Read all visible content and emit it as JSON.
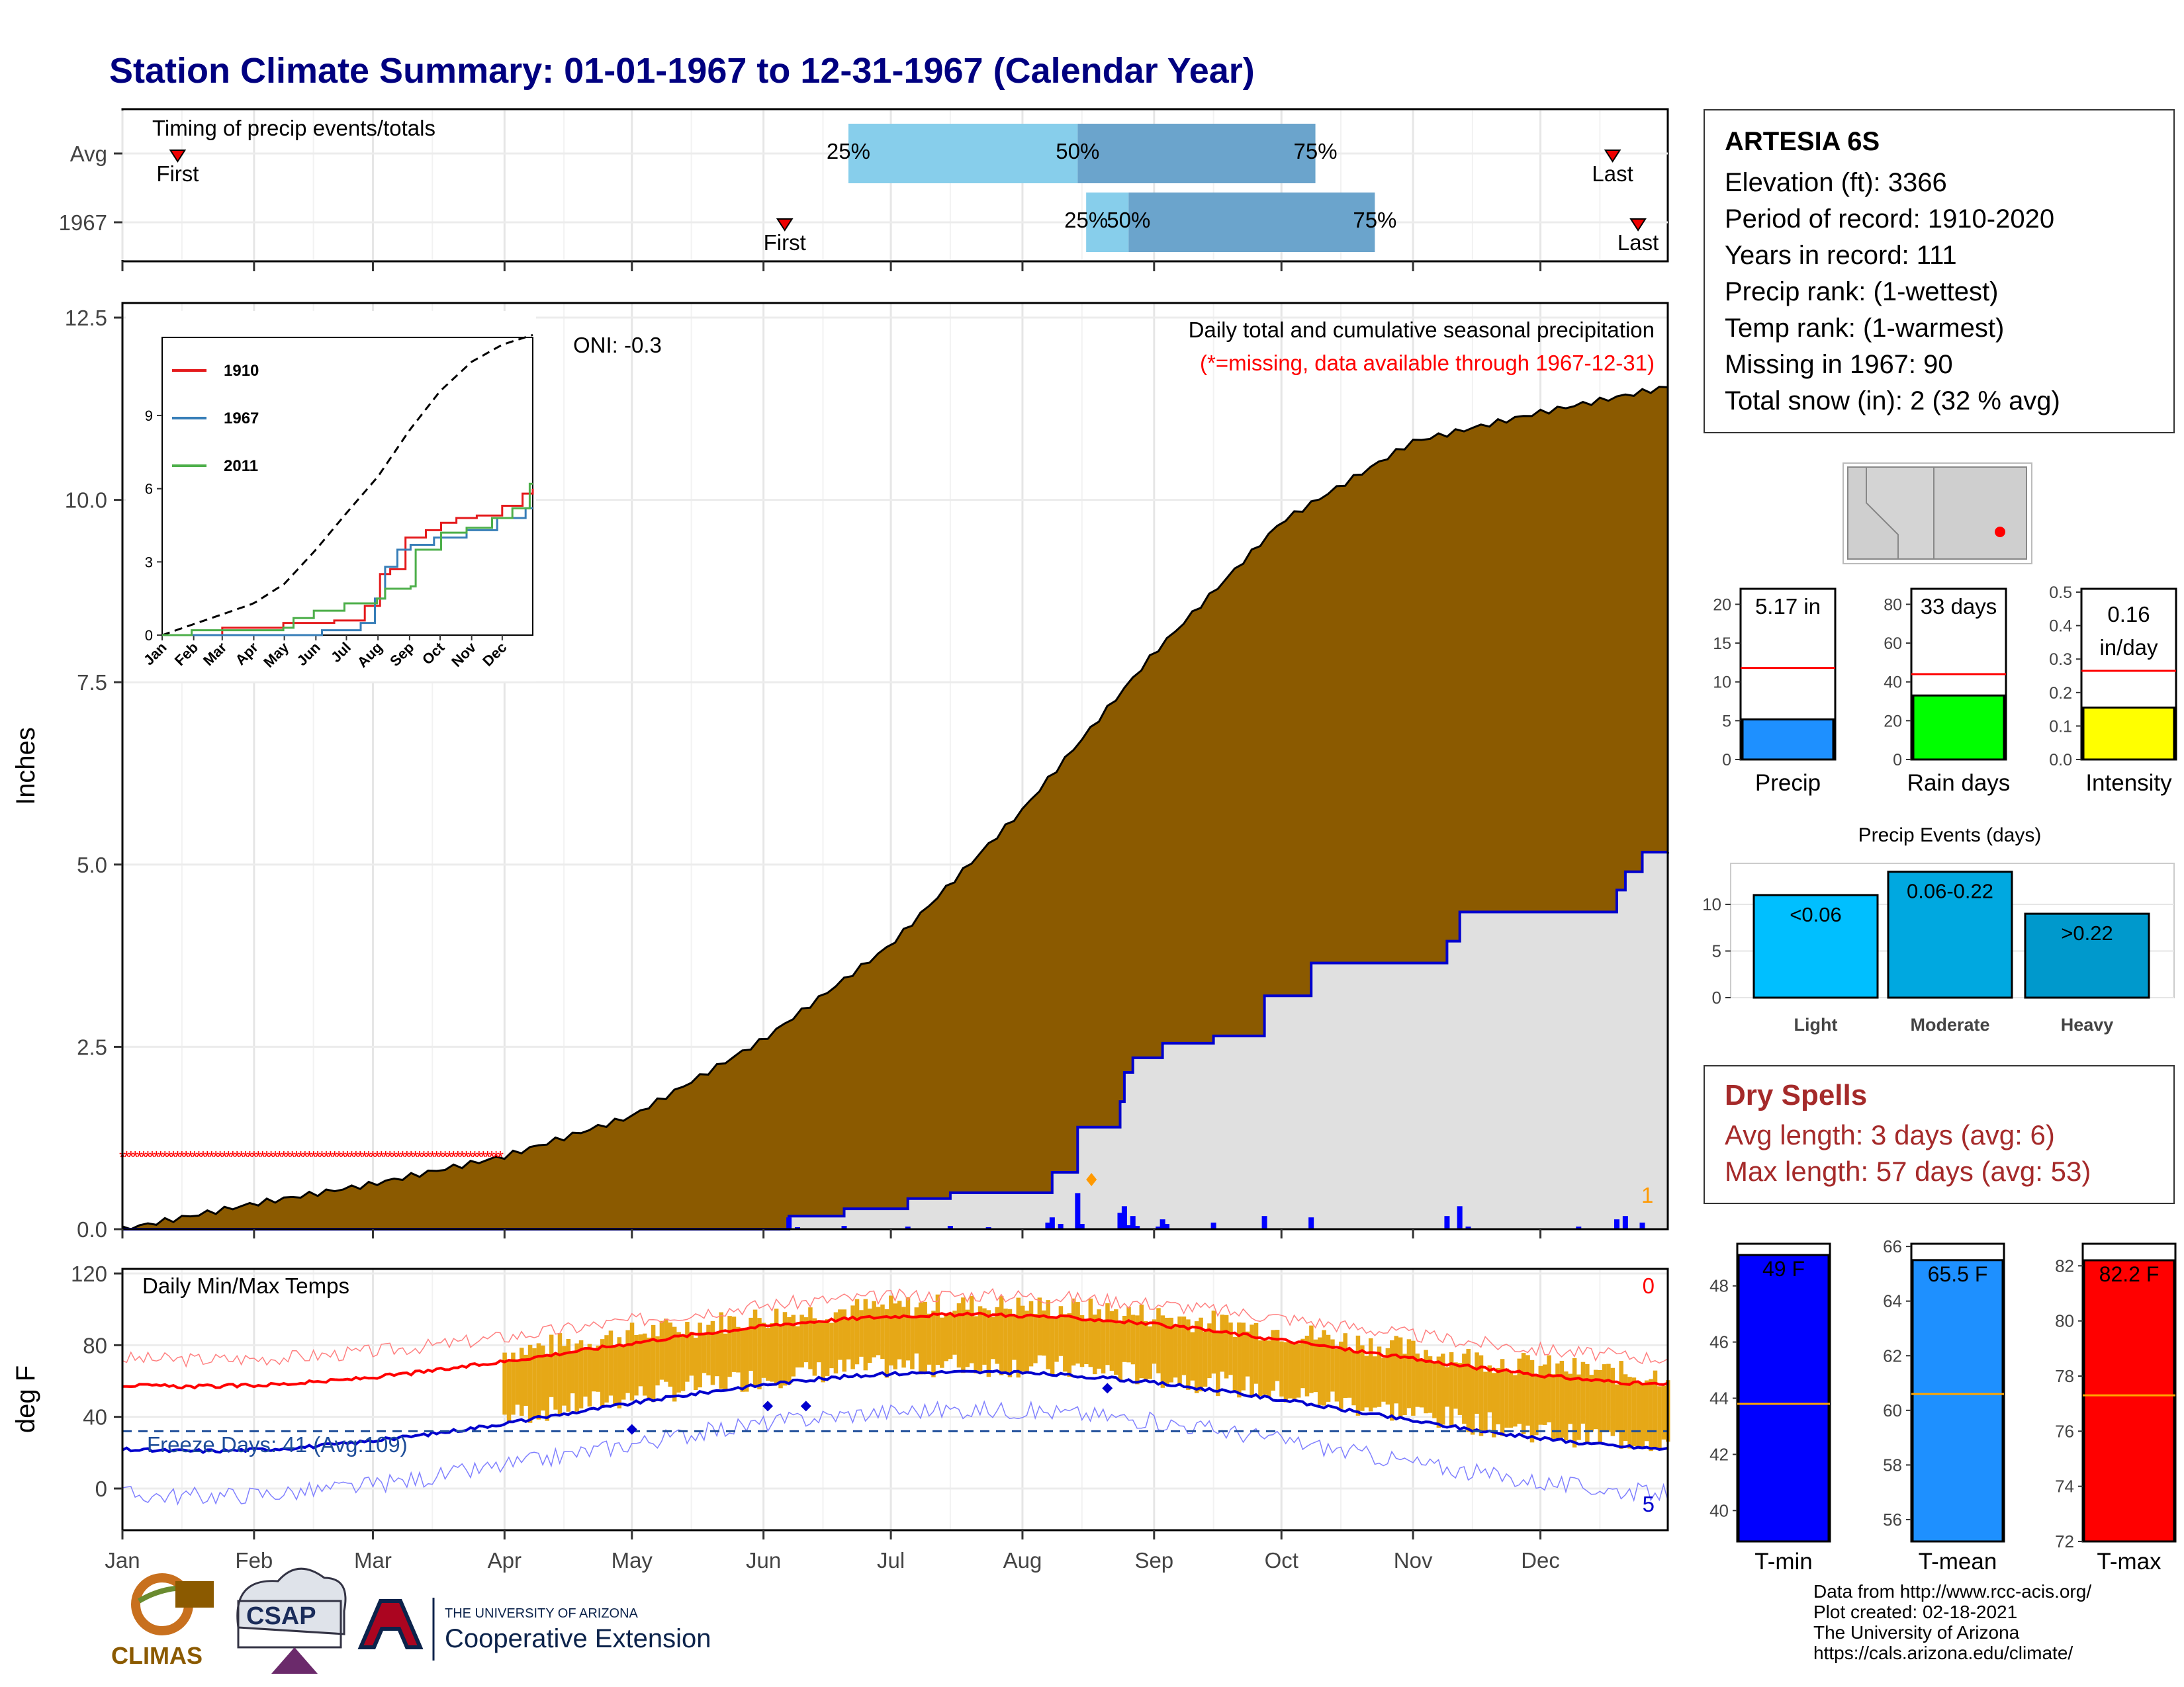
{
  "title": "Station Climate Summary: 01-01-1967 to 12-31-1967 (Calendar Year)",
  "colors": {
    "title": "#000080",
    "precip_fill": "#8b5a00",
    "cum_line": "#0000cd",
    "cum_area": "#e0e0e0",
    "timing_q1": "#87ceeb",
    "timing_q2": "#6ba4cc",
    "temp_bar": "#e6a817",
    "max_line": "#ff0000",
    "min_line": "#0000cd",
    "missing": "#ff0000"
  },
  "timing_panel": {
    "label": "Timing of precip events/totals",
    "rows": [
      {
        "name": "Avg",
        "first_label": "First",
        "last_label": "Last",
        "first_doy": 14,
        "last_doy": 352,
        "q25": 172,
        "q50": 226,
        "q75": 282
      },
      {
        "name": "1967",
        "first_label": "First",
        "last_label": "Last",
        "first_doy": 157,
        "last_doy": 358,
        "q25": 228,
        "q50": 238,
        "q75": 296
      }
    ],
    "q_labels": [
      "25%",
      "50%",
      "75%"
    ]
  },
  "precip_panel": {
    "ylabel": "Inches",
    "y_ticks": [
      "0.0",
      "2.5",
      "5.0",
      "7.5",
      "10.0",
      "12.5"
    ],
    "ylim": [
      0,
      12.7
    ],
    "oni": "ONI: -0.3",
    "note_line1": "Daily total and cumulative seasonal precipitation",
    "note_line2": "(*=missing, data available through 1967-12-31)",
    "corner_count": "1",
    "missing_range_doy": [
      1,
      90
    ]
  },
  "inset": {
    "legend": [
      "1910",
      "1967",
      "2011"
    ],
    "legend_colors": [
      "#e41a1c",
      "#377eb8",
      "#4daf4a"
    ],
    "y_ticks": [
      "0",
      "3",
      "6",
      "9"
    ],
    "x_ticks": [
      "Jan",
      "Feb",
      "Mar",
      "Apr",
      "May",
      "Jun",
      "Jul",
      "Aug",
      "Sep",
      "Oct",
      "Nov",
      "Dec"
    ]
  },
  "temp_panel": {
    "ylabel": "deg F",
    "label": "Daily Min/Max Temps",
    "y_ticks": [
      "0",
      "40",
      "80",
      "120"
    ],
    "freeze_label": "Freeze Days: 41 (Avg:109)",
    "corner_top": "0",
    "corner_bottom": "5",
    "freeze_line": 32
  },
  "months": [
    "Jan",
    "Feb",
    "Mar",
    "Apr",
    "May",
    "Jun",
    "Jul",
    "Aug",
    "Sep",
    "Oct",
    "Nov",
    "Dec"
  ],
  "station": {
    "name": "ARTESIA 6S",
    "lines": [
      "Elevation (ft): 3366",
      "Period of record: 1910-2020",
      "Years in record: 111",
      "Precip rank:  (1-wettest)",
      "Temp rank:  (1-warmest)",
      "Missing in 1967: 90",
      "Total snow (in): 2 (32 % avg)"
    ]
  },
  "bar_panels": {
    "precip": {
      "label": "Precip",
      "value_text": "5.17 in",
      "value": 5.17,
      "avg": 11.8,
      "ymax": 22,
      "ticks": [
        "0",
        "5",
        "10",
        "15",
        "20"
      ],
      "color": "#1e90ff"
    },
    "rain_days": {
      "label": "Rain days",
      "value_text": "33 days",
      "value": 33,
      "avg": 44,
      "ymax": 88,
      "ticks": [
        "0",
        "20",
        "40",
        "60",
        "80"
      ],
      "color": "#00ff00"
    },
    "intensity": {
      "label": "Intensity",
      "value_text1": "0.16",
      "value_text2": "in/day",
      "value": 0.155,
      "avg": 0.265,
      "ymax": 0.51,
      "ticks": [
        "0.0",
        "0.1",
        "0.2",
        "0.3",
        "0.4",
        "0.5"
      ],
      "color": "#ffff00"
    }
  },
  "events": {
    "title": "Precip Events (days)",
    "categories": [
      "Light",
      "Moderate",
      "Heavy"
    ],
    "labels": [
      "<0.06",
      "0.06-0.22",
      ">0.22"
    ],
    "values": [
      11,
      13.5,
      9
    ],
    "colors": [
      "#00bfff",
      "#00a8e0",
      "#0099cc"
    ],
    "ticks": [
      "0",
      "5",
      "10"
    ]
  },
  "dry_spells": {
    "title": "Dry Spells",
    "line1": "Avg length: 3 days (avg: 6)",
    "line2": "Max length: 57 days (avg: 53)"
  },
  "temp_bars": {
    "tmin": {
      "label": "T-min",
      "value_text": "49 F",
      "value": 49.1,
      "avg": 43.8,
      "ylim": [
        38.9,
        49.5
      ],
      "ticks": [
        "40",
        "42",
        "44",
        "46",
        "48"
      ],
      "color": "#0000ff"
    },
    "tmean": {
      "label": "T-mean",
      "value_text": "65.5 F",
      "value": 65.5,
      "avg": 60.6,
      "ylim": [
        55.2,
        66.1
      ],
      "ticks": [
        "56",
        "58",
        "60",
        "62",
        "64",
        "66"
      ],
      "color": "#1e90ff"
    },
    "tmax": {
      "label": "T-max",
      "value_text": "82.2 F",
      "value": 82.2,
      "avg": 77.3,
      "ylim": [
        72,
        82.8
      ],
      "ticks": [
        "72",
        "74",
        "76",
        "78",
        "80",
        "82"
      ],
      "color": "#ff0000"
    }
  },
  "logos": {
    "climas": "CLIMAS",
    "csap": "CSAP",
    "ua_line1": "THE UNIVERSITY OF ARIZONA",
    "ua_line2": "Cooperative Extension"
  },
  "credits": [
    "Data from http://www.rcc-acis.org/",
    "Plot created: 02-18-2021",
    "The University of Arizona",
    "https://cals.arizona.edu/climate/"
  ]
}
